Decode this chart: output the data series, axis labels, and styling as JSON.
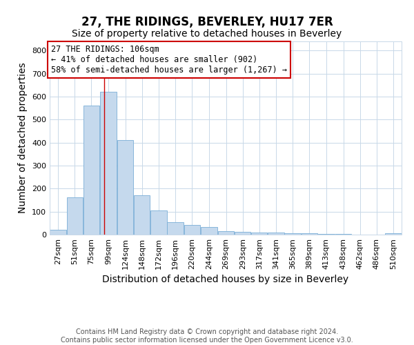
{
  "title": "27, THE RIDINGS, BEVERLEY, HU17 7ER",
  "subtitle": "Size of property relative to detached houses in Beverley",
  "xlabel": "Distribution of detached houses by size in Beverley",
  "ylabel": "Number of detached properties",
  "footnote": "Contains HM Land Registry data © Crown copyright and database right 2024.\nContains public sector information licensed under the Open Government Licence v3.0.",
  "bins": [
    27,
    51,
    75,
    99,
    124,
    148,
    172,
    196,
    220,
    244,
    269,
    293,
    317,
    341,
    365,
    389,
    413,
    438,
    462,
    486,
    510
  ],
  "bin_labels": [
    "27sqm",
    "51sqm",
    "75sqm",
    "99sqm",
    "124sqm",
    "148sqm",
    "172sqm",
    "196sqm",
    "220sqm",
    "244sqm",
    "269sqm",
    "293sqm",
    "317sqm",
    "341sqm",
    "365sqm",
    "389sqm",
    "413sqm",
    "438sqm",
    "462sqm",
    "486sqm",
    "510sqm"
  ],
  "values": [
    20,
    163,
    560,
    620,
    410,
    170,
    105,
    55,
    43,
    33,
    15,
    12,
    10,
    8,
    7,
    5,
    3,
    2,
    1,
    1,
    7
  ],
  "bar_color": "#c5d9ed",
  "bar_edgecolor": "#7aaed6",
  "grid_color": "#c8d8e8",
  "property_sqm": 106,
  "redline_color": "#cc0000",
  "annotation_text": "27 THE RIDINGS: 106sqm\n← 41% of detached houses are smaller (902)\n58% of semi-detached houses are larger (1,267) →",
  "annotation_box_color": "#ffffff",
  "annotation_box_edgecolor": "#cc0000",
  "ylim": [
    0,
    840
  ],
  "yticks": [
    0,
    100,
    200,
    300,
    400,
    500,
    600,
    700,
    800
  ],
  "title_fontsize": 12,
  "subtitle_fontsize": 10,
  "axis_label_fontsize": 10,
  "tick_fontsize": 8,
  "footnote_fontsize": 7,
  "annotation_fontsize": 8.5
}
